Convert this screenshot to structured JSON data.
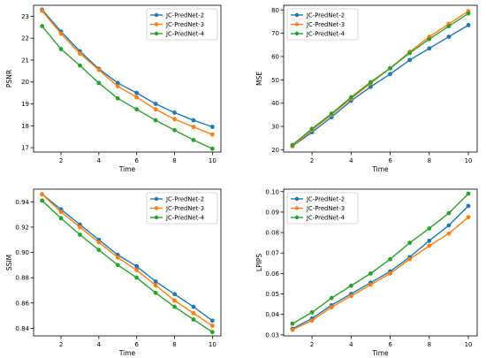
{
  "chart_data": [
    {
      "type": "line",
      "xlabel": "Time",
      "ylabel": "PSNR",
      "x": [
        1,
        2,
        3,
        4,
        5,
        6,
        7,
        8,
        9,
        10
      ],
      "xticks": [
        2,
        4,
        6,
        8,
        10
      ],
      "ylim": [
        16.8,
        23.5
      ],
      "yticks": [
        17,
        18,
        19,
        20,
        21,
        22,
        23
      ],
      "legend": "top-right",
      "series": [
        {
          "name": "JC-PredNet-2",
          "color": "#1f77b4",
          "values": [
            23.3,
            22.3,
            21.4,
            20.6,
            19.95,
            19.5,
            19.0,
            18.6,
            18.25,
            17.95
          ]
        },
        {
          "name": "JC-PredNet-3",
          "color": "#ff7f0e",
          "values": [
            23.25,
            22.2,
            21.3,
            20.55,
            19.8,
            19.3,
            18.75,
            18.3,
            17.95,
            17.6
          ]
        },
        {
          "name": "JC-PredNet-4",
          "color": "#2ca02c",
          "values": [
            22.55,
            21.5,
            20.75,
            19.95,
            19.25,
            18.75,
            18.25,
            17.8,
            17.35,
            16.95
          ]
        }
      ]
    },
    {
      "type": "line",
      "xlabel": "Time",
      "ylabel": "MSE",
      "x": [
        1,
        2,
        3,
        4,
        5,
        6,
        7,
        8,
        9,
        10
      ],
      "xticks": [
        2,
        4,
        6,
        8,
        10
      ],
      "ylim": [
        19,
        82
      ],
      "yticks": [
        20,
        30,
        40,
        50,
        60,
        70,
        80
      ],
      "legend": "top-left",
      "series": [
        {
          "name": "JC-PredNet-2",
          "color": "#1f77b4",
          "values": [
            21.5,
            27.5,
            34.0,
            41.0,
            47.0,
            52.5,
            58.5,
            63.5,
            68.5,
            73.5
          ]
        },
        {
          "name": "JC-PredNet-3",
          "color": "#ff7f0e",
          "values": [
            21.5,
            28.5,
            35.0,
            42.0,
            48.5,
            55.0,
            62.0,
            68.5,
            74.0,
            79.5
          ]
        },
        {
          "name": "JC-PredNet-4",
          "color": "#2ca02c",
          "values": [
            22.0,
            29.0,
            35.5,
            42.5,
            49.0,
            55.0,
            61.5,
            67.5,
            73.0,
            78.5
          ]
        }
      ]
    },
    {
      "type": "line",
      "xlabel": "Time",
      "ylabel": "SSIM",
      "x": [
        1,
        2,
        3,
        4,
        5,
        6,
        7,
        8,
        9,
        10
      ],
      "xticks": [
        2,
        4,
        6,
        8,
        10
      ],
      "ylim": [
        0.834,
        0.95
      ],
      "yticks": [
        0.84,
        0.86,
        0.88,
        0.9,
        0.92,
        0.94
      ],
      "yticklabels": [
        "0.84",
        "0.86",
        "0.88",
        "0.90",
        "0.92",
        "0.94"
      ],
      "legend": "top-right",
      "series": [
        {
          "name": "JC-PredNet-2",
          "color": "#1f77b4",
          "values": [
            0.946,
            0.934,
            0.922,
            0.91,
            0.898,
            0.889,
            0.877,
            0.867,
            0.857,
            0.846
          ]
        },
        {
          "name": "JC-PredNet-3",
          "color": "#ff7f0e",
          "values": [
            0.946,
            0.932,
            0.92,
            0.908,
            0.896,
            0.886,
            0.874,
            0.862,
            0.852,
            0.842
          ]
        },
        {
          "name": "JC-PredNet-4",
          "color": "#2ca02c",
          "values": [
            0.941,
            0.927,
            0.914,
            0.902,
            0.89,
            0.88,
            0.868,
            0.857,
            0.847,
            0.837
          ]
        }
      ]
    },
    {
      "type": "line",
      "xlabel": "Time",
      "ylabel": "LPIPS",
      "x": [
        1,
        2,
        3,
        4,
        5,
        6,
        7,
        8,
        9,
        10
      ],
      "xticks": [
        2,
        4,
        6,
        8,
        10
      ],
      "ylim": [
        0.0295,
        0.1012
      ],
      "yticks": [
        0.03,
        0.04,
        0.05,
        0.06,
        0.07,
        0.08,
        0.09,
        0.1
      ],
      "yticklabels": [
        "0.03",
        "0.04",
        "0.05",
        "0.06",
        "0.07",
        "0.08",
        "0.09",
        "0.10"
      ],
      "legend": "top-left",
      "series": [
        {
          "name": "JC-PredNet-2",
          "color": "#1f77b4",
          "values": [
            0.033,
            0.038,
            0.0445,
            0.05,
            0.0555,
            0.061,
            0.068,
            0.076,
            0.0835,
            0.093
          ]
        },
        {
          "name": "JC-PredNet-3",
          "color": "#ff7f0e",
          "values": [
            0.0325,
            0.037,
            0.0435,
            0.049,
            0.0545,
            0.06,
            0.067,
            0.0735,
            0.0795,
            0.0875
          ]
        },
        {
          "name": "JC-PredNet-4",
          "color": "#2ca02c",
          "values": [
            0.0355,
            0.041,
            0.048,
            0.054,
            0.06,
            0.067,
            0.075,
            0.082,
            0.0895,
            0.099
          ]
        }
      ]
    }
  ]
}
